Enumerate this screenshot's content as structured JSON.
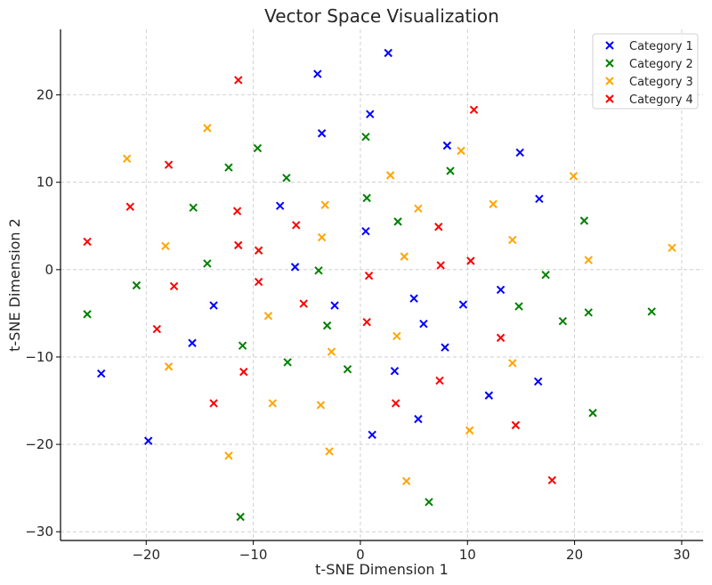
{
  "chart_data": {
    "type": "scatter",
    "title": "Vector Space Visualization",
    "xlabel": "t-SNE Dimension 1",
    "ylabel": "t-SNE Dimension 2",
    "xlim": [
      -28,
      32
    ],
    "ylim": [
      -31,
      27.5
    ],
    "xticks": [
      -20,
      -10,
      0,
      10,
      20,
      30
    ],
    "yticks": [
      -30,
      -20,
      -10,
      0,
      10,
      20
    ],
    "xtick_labels": [
      "−20",
      "−10",
      "0",
      "10",
      "20",
      "30"
    ],
    "ytick_labels": [
      "−30",
      "−20",
      "−10",
      "0",
      "10",
      "20"
    ],
    "grid": true,
    "legend_position": "top-right",
    "marker": "x",
    "series": [
      {
        "name": "Category 1",
        "color": "#0000ff",
        "points": [
          [
            2.6,
            24.8
          ],
          [
            -4.0,
            22.4
          ],
          [
            0.9,
            17.8
          ],
          [
            -3.6,
            15.6
          ],
          [
            8.1,
            14.2
          ],
          [
            14.9,
            13.4
          ],
          [
            16.7,
            8.1
          ],
          [
            -7.5,
            7.3
          ],
          [
            0.5,
            4.4
          ],
          [
            -6.1,
            0.3
          ],
          [
            13.1,
            -2.3
          ],
          [
            -2.4,
            -4.1
          ],
          [
            5.0,
            -3.3
          ],
          [
            9.6,
            -4.0
          ],
          [
            -13.7,
            -4.1
          ],
          [
            5.9,
            -6.2
          ],
          [
            -15.7,
            -8.4
          ],
          [
            7.9,
            -8.9
          ],
          [
            -24.2,
            -11.9
          ],
          [
            3.2,
            -11.6
          ],
          [
            16.6,
            -12.8
          ],
          [
            12.0,
            -14.4
          ],
          [
            5.4,
            -17.1
          ],
          [
            1.1,
            -18.9
          ],
          [
            -19.8,
            -19.6
          ]
        ]
      },
      {
        "name": "Category 2",
        "color": "#008000",
        "points": [
          [
            -9.6,
            13.9
          ],
          [
            0.5,
            15.2
          ],
          [
            -12.3,
            11.7
          ],
          [
            8.4,
            11.3
          ],
          [
            -6.9,
            10.5
          ],
          [
            0.6,
            8.2
          ],
          [
            -15.6,
            7.1
          ],
          [
            3.5,
            5.5
          ],
          [
            20.9,
            5.6
          ],
          [
            -14.3,
            0.7
          ],
          [
            -3.9,
            -0.1
          ],
          [
            17.3,
            -0.6
          ],
          [
            -20.9,
            -1.8
          ],
          [
            14.8,
            -4.2
          ],
          [
            21.3,
            -4.9
          ],
          [
            27.2,
            -4.8
          ],
          [
            -25.5,
            -5.1
          ],
          [
            18.9,
            -5.9
          ],
          [
            -3.1,
            -6.4
          ],
          [
            -11.0,
            -8.7
          ],
          [
            -6.8,
            -10.6
          ],
          [
            -1.2,
            -11.4
          ],
          [
            21.7,
            -16.4
          ],
          [
            6.4,
            -26.6
          ],
          [
            -11.2,
            -28.3
          ]
        ]
      },
      {
        "name": "Category 3",
        "color": "#ffa500",
        "points": [
          [
            -14.3,
            16.2
          ],
          [
            9.4,
            13.6
          ],
          [
            -21.8,
            12.7
          ],
          [
            2.8,
            10.8
          ],
          [
            19.9,
            10.7
          ],
          [
            12.4,
            7.5
          ],
          [
            -3.3,
            7.4
          ],
          [
            5.4,
            7.0
          ],
          [
            -3.6,
            3.7
          ],
          [
            14.2,
            3.4
          ],
          [
            -18.2,
            2.7
          ],
          [
            29.1,
            2.5
          ],
          [
            4.1,
            1.5
          ],
          [
            21.3,
            1.1
          ],
          [
            -8.6,
            -5.3
          ],
          [
            3.4,
            -7.6
          ],
          [
            -2.7,
            -9.4
          ],
          [
            -17.9,
            -11.1
          ],
          [
            14.2,
            -10.7
          ],
          [
            -8.2,
            -15.3
          ],
          [
            -3.7,
            -15.5
          ],
          [
            10.2,
            -18.4
          ],
          [
            -2.9,
            -20.8
          ],
          [
            -12.3,
            -21.3
          ],
          [
            4.3,
            -24.2
          ]
        ]
      },
      {
        "name": "Category 4",
        "color": "#ff0000",
        "points": [
          [
            -11.4,
            21.7
          ],
          [
            10.6,
            18.3
          ],
          [
            -17.9,
            12.0
          ],
          [
            -21.5,
            7.2
          ],
          [
            -11.5,
            6.7
          ],
          [
            -6.0,
            5.1
          ],
          [
            7.3,
            4.9
          ],
          [
            -25.5,
            3.2
          ],
          [
            -11.4,
            2.8
          ],
          [
            -9.5,
            2.2
          ],
          [
            10.3,
            1.0
          ],
          [
            7.5,
            0.5
          ],
          [
            0.8,
            -0.7
          ],
          [
            -9.5,
            -1.4
          ],
          [
            -17.4,
            -1.9
          ],
          [
            -5.3,
            -3.9
          ],
          [
            0.6,
            -6.0
          ],
          [
            -19.0,
            -6.8
          ],
          [
            13.1,
            -7.8
          ],
          [
            -10.9,
            -11.7
          ],
          [
            7.4,
            -12.7
          ],
          [
            -13.7,
            -15.3
          ],
          [
            3.3,
            -15.3
          ],
          [
            14.5,
            -17.8
          ],
          [
            17.9,
            -24.1
          ]
        ]
      }
    ]
  }
}
